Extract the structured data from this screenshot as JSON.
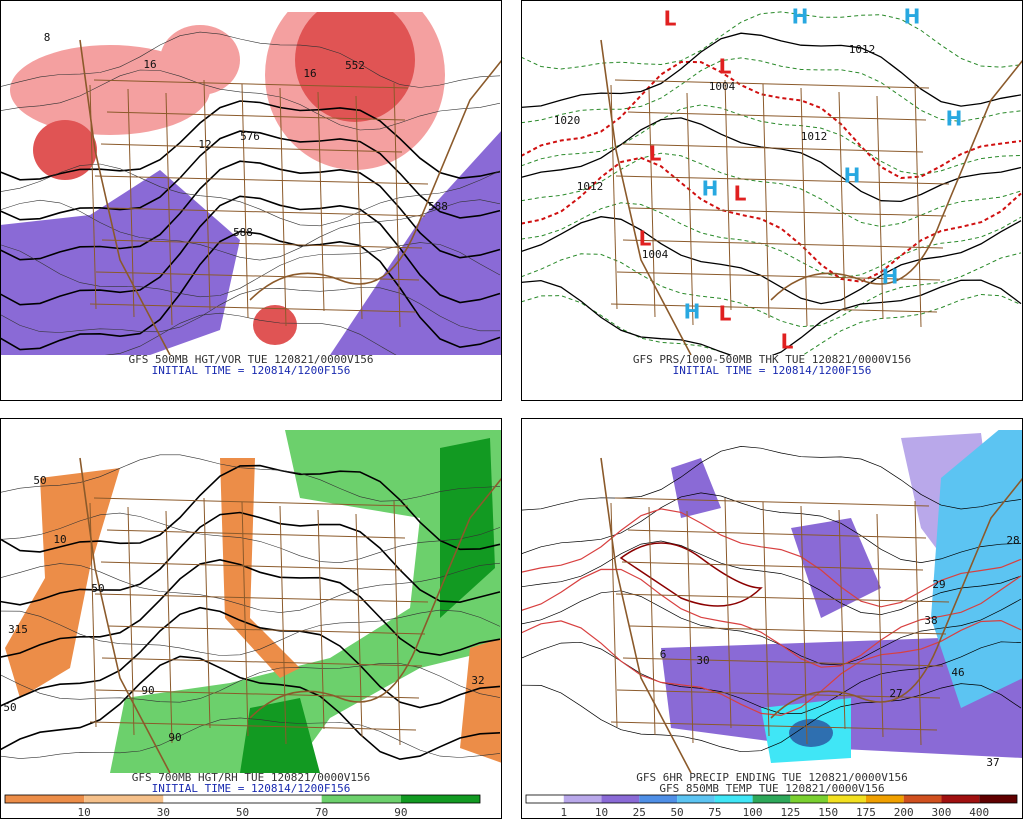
{
  "panels": [
    {
      "title": "GFS 500MB HGT/VOR TUE 120821/0000V156",
      "subtitle": "INITIAL TIME = 120814/1200F156",
      "map_labels": [
        "552",
        "576",
        "588",
        "588",
        "8",
        "12",
        "16",
        "16"
      ]
    },
    {
      "title": "GFS PRS/1000-500MB THK TUE 120821/0000V156",
      "subtitle": "INITIAL TIME = 120814/1200F156",
      "map_labels": [
        "1004",
        "1012",
        "1020",
        "1012",
        "1012",
        "1004",
        "L",
        "L",
        "L",
        "L",
        "L",
        "L",
        "L",
        "H",
        "H",
        "H",
        "H",
        "H",
        "H",
        "H"
      ]
    },
    {
      "title": "GFS 700MB HGT/RH TUE 120821/0000V156",
      "subtitle": "INITIAL TIME = 120814/1200F156",
      "map_labels": [
        "50",
        "50",
        "10",
        "315",
        "90",
        "90",
        "32",
        "50"
      ],
      "colorbar": {
        "labels": [
          10,
          30,
          50,
          70,
          90
        ],
        "colors": [
          "#ec8d48",
          "#f5c08a",
          "#ffffff",
          "#ffffff",
          "#6cd06c",
          "#129a22"
        ]
      }
    },
    {
      "title": "GFS 6HR PRECIP ENDING TUE 120821/0000V156",
      "subtitle": "GFS 850MB TEMP TUE 120821/0000V156",
      "map_labels": [
        "29",
        "38",
        "46",
        "27",
        "28",
        "37",
        "6",
        "30"
      ],
      "colorbar": {
        "labels": [
          1,
          10,
          25,
          50,
          75,
          100,
          125,
          150,
          175,
          200,
          300,
          400
        ],
        "colors": [
          "#ffffff",
          "#b9a8ea",
          "#8a6ad6",
          "#4f8fe6",
          "#5cc4f2",
          "#40e6f6",
          "#2ea85a",
          "#7ad030",
          "#f2e020",
          "#f0a000",
          "#d0501e",
          "#a01010",
          "#600000"
        ]
      }
    }
  ]
}
